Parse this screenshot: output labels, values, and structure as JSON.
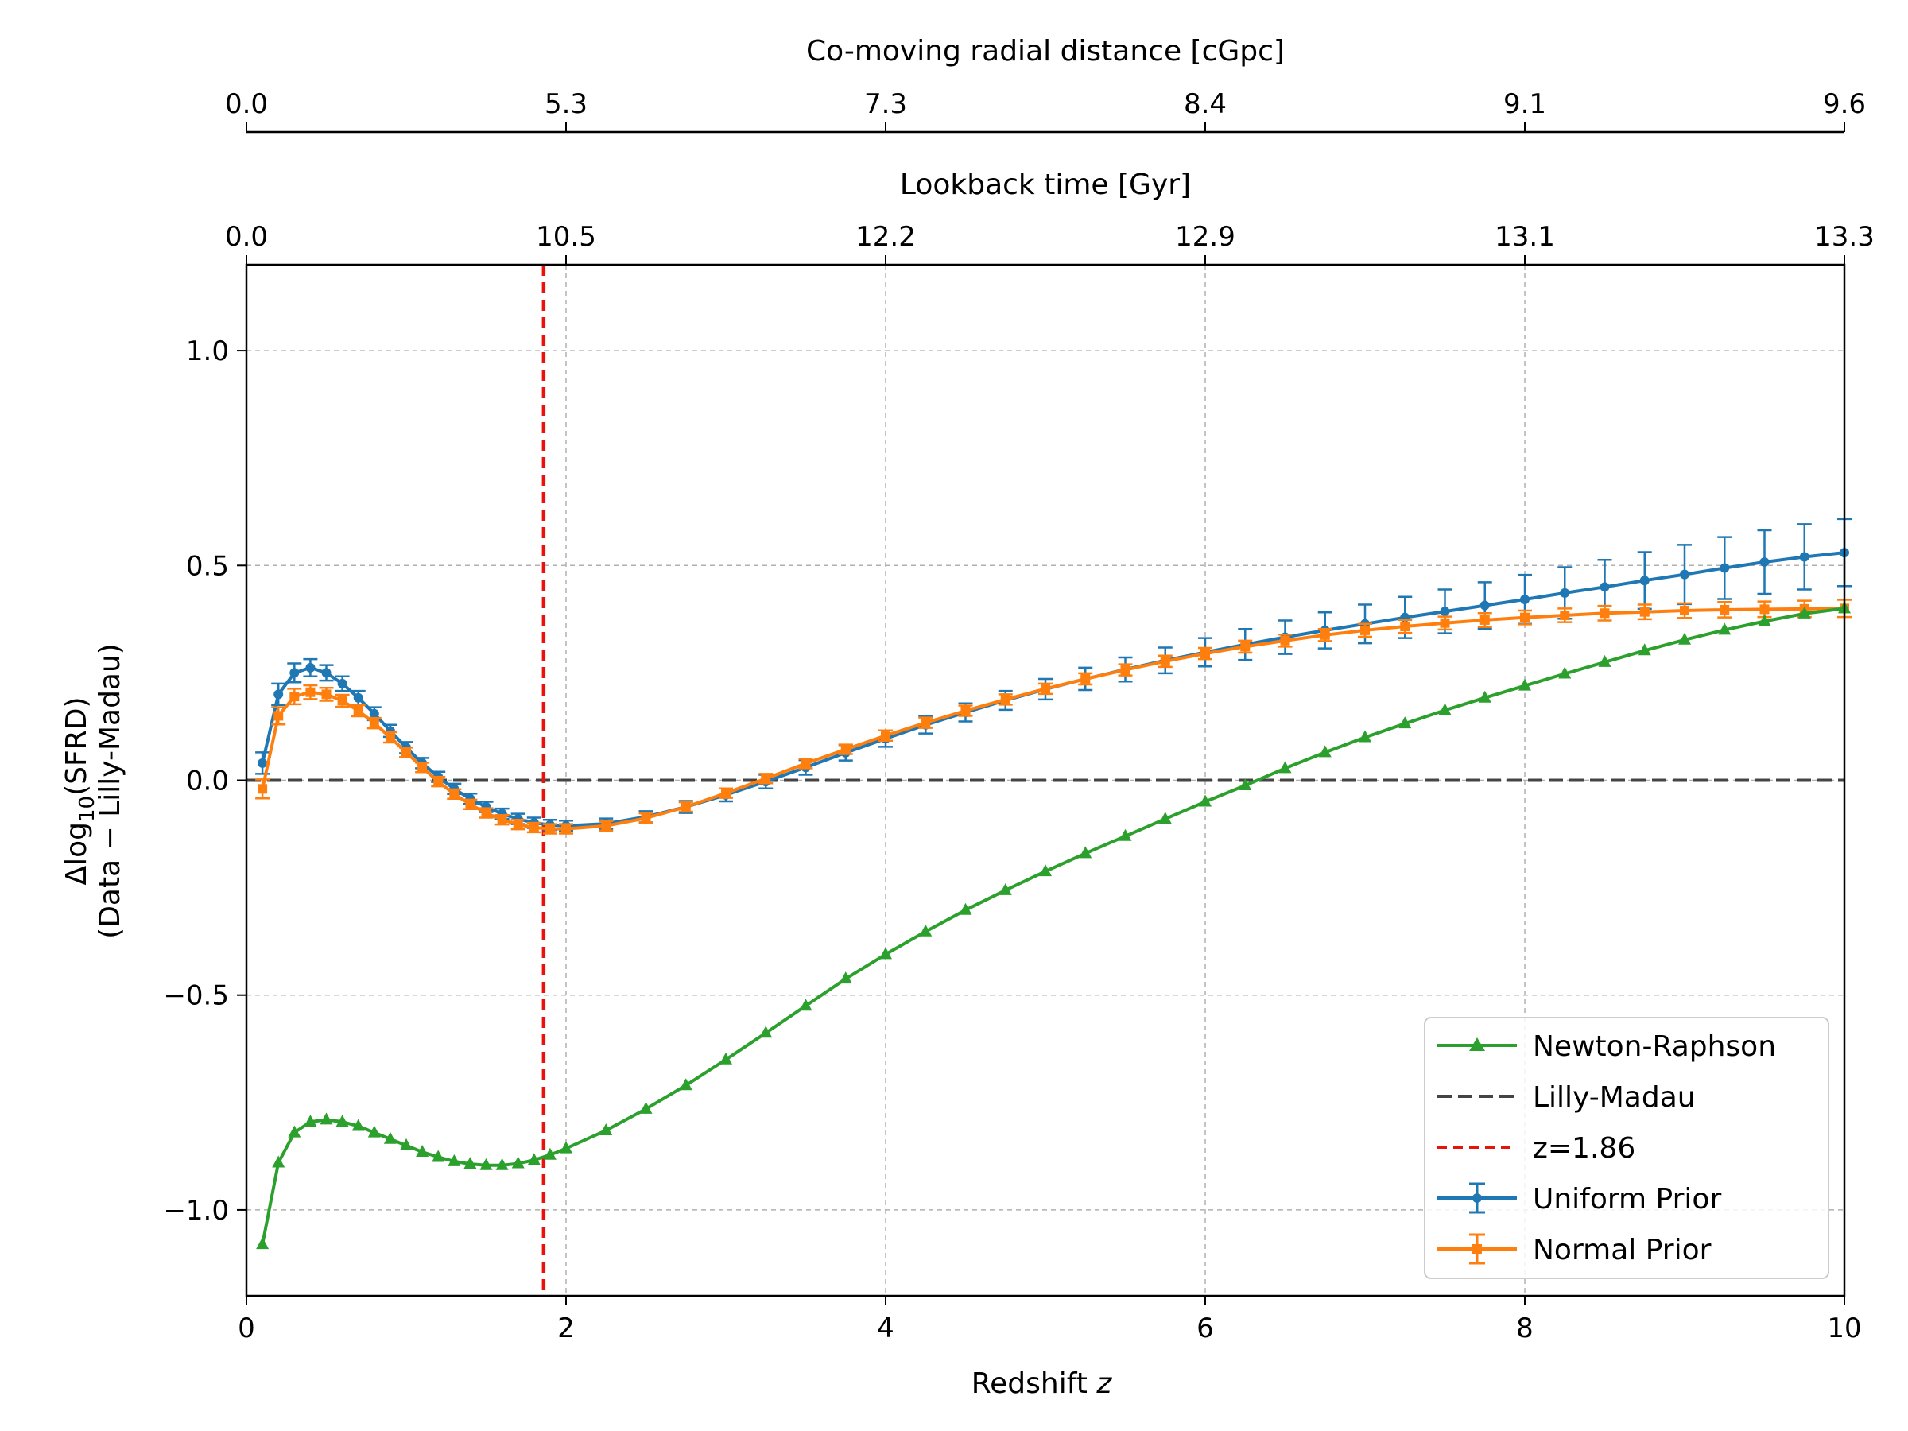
{
  "chart_data": {
    "type": "line",
    "xlabel": "Redshift",
    "xlabel_var": "z",
    "ylabel_line1": "Δlog",
    "ylabel_sub": "10",
    "ylabel_line1_rest": "(SFRD)",
    "ylabel_line2": "(Data − Lilly-Madau)",
    "xlim": [
      0,
      10
    ],
    "ylim": [
      -1.2,
      1.2
    ],
    "grid": true,
    "legend_position": "lower-right",
    "x_ticks": [
      0,
      2,
      4,
      6,
      8,
      10
    ],
    "x_tick_labels": [
      "0",
      "2",
      "4",
      "6",
      "8",
      "10"
    ],
    "y_ticks": [
      -1.0,
      -0.5,
      0.0,
      0.5,
      1.0
    ],
    "y_tick_labels": [
      "−1.0",
      "−0.5",
      "0.0",
      "0.5",
      "1.0"
    ],
    "top_axis_1": {
      "label": "Lookback time [Gyr]",
      "tick_positions_z": [
        0,
        2,
        4,
        6,
        8,
        10
      ],
      "tick_labels": [
        "0.0",
        "10.5",
        "12.2",
        "12.9",
        "13.1",
        "13.3"
      ]
    },
    "top_axis_2": {
      "label": "Co-moving radial distance [cGpc]",
      "tick_positions_z": [
        0,
        2,
        4,
        6,
        8,
        10
      ],
      "tick_labels": [
        "0.0",
        "5.3",
        "7.3",
        "8.4",
        "9.1",
        "9.6"
      ]
    },
    "vline": {
      "x": 1.86,
      "color": "#e8120c",
      "label": "z=1.86"
    },
    "hline": {
      "y": 0.0,
      "color": "#444444",
      "label": "Lilly-Madau"
    },
    "series": [
      {
        "name": "Newton-Raphson",
        "color": "#2ca02c",
        "marker": "triangle",
        "points": [
          [
            0.1,
            -1.08
          ],
          [
            0.2,
            -0.89
          ],
          [
            0.3,
            -0.82
          ],
          [
            0.4,
            -0.795
          ],
          [
            0.5,
            -0.79
          ],
          [
            0.6,
            -0.795
          ],
          [
            0.7,
            -0.805
          ],
          [
            0.8,
            -0.82
          ],
          [
            0.9,
            -0.835
          ],
          [
            1.0,
            -0.85
          ],
          [
            1.1,
            -0.865
          ],
          [
            1.2,
            -0.877
          ],
          [
            1.3,
            -0.887
          ],
          [
            1.4,
            -0.893
          ],
          [
            1.5,
            -0.896
          ],
          [
            1.6,
            -0.896
          ],
          [
            1.7,
            -0.892
          ],
          [
            1.8,
            -0.884
          ],
          [
            1.9,
            -0.872
          ],
          [
            2.0,
            -0.857
          ],
          [
            2.25,
            -0.815
          ],
          [
            2.5,
            -0.765
          ],
          [
            2.75,
            -0.71
          ],
          [
            3.0,
            -0.65
          ],
          [
            3.25,
            -0.588
          ],
          [
            3.5,
            -0.525
          ],
          [
            3.75,
            -0.462
          ],
          [
            4.0,
            -0.405
          ],
          [
            4.25,
            -0.352
          ],
          [
            4.5,
            -0.302
          ],
          [
            4.75,
            -0.256
          ],
          [
            5.0,
            -0.212
          ],
          [
            5.25,
            -0.17
          ],
          [
            5.5,
            -0.13
          ],
          [
            5.75,
            -0.09
          ],
          [
            6.0,
            -0.05
          ],
          [
            6.25,
            -0.012
          ],
          [
            6.5,
            0.028
          ],
          [
            6.75,
            0.065
          ],
          [
            7.0,
            0.1
          ],
          [
            7.25,
            0.132
          ],
          [
            7.5,
            0.163
          ],
          [
            7.75,
            0.192
          ],
          [
            8.0,
            0.22
          ],
          [
            8.25,
            0.248
          ],
          [
            8.5,
            0.275
          ],
          [
            8.75,
            0.302
          ],
          [
            9.0,
            0.327
          ],
          [
            9.25,
            0.35
          ],
          [
            9.5,
            0.37
          ],
          [
            9.75,
            0.388
          ],
          [
            10.0,
            0.4
          ]
        ]
      },
      {
        "name": "Uniform Prior",
        "color": "#1f77b4",
        "marker": "circle",
        "points": [
          [
            0.1,
            0.04
          ],
          [
            0.2,
            0.2
          ],
          [
            0.3,
            0.25
          ],
          [
            0.4,
            0.262
          ],
          [
            0.5,
            0.25
          ],
          [
            0.6,
            0.225
          ],
          [
            0.7,
            0.192
          ],
          [
            0.8,
            0.155
          ],
          [
            0.9,
            0.115
          ],
          [
            1.0,
            0.076
          ],
          [
            1.1,
            0.04
          ],
          [
            1.2,
            0.008
          ],
          [
            1.3,
            -0.02
          ],
          [
            1.4,
            -0.043
          ],
          [
            1.5,
            -0.062
          ],
          [
            1.6,
            -0.078
          ],
          [
            1.7,
            -0.09
          ],
          [
            1.8,
            -0.099
          ],
          [
            1.9,
            -0.104
          ],
          [
            2.0,
            -0.106
          ],
          [
            2.25,
            -0.101
          ],
          [
            2.5,
            -0.085
          ],
          [
            2.75,
            -0.062
          ],
          [
            3.0,
            -0.034
          ],
          [
            3.25,
            -0.003
          ],
          [
            3.5,
            0.03
          ],
          [
            3.75,
            0.064
          ],
          [
            4.0,
            0.097
          ],
          [
            4.25,
            0.129
          ],
          [
            4.5,
            0.158
          ],
          [
            4.75,
            0.186
          ],
          [
            5.0,
            0.212
          ],
          [
            5.25,
            0.236
          ],
          [
            5.5,
            0.258
          ],
          [
            5.75,
            0.279
          ],
          [
            6.0,
            0.298
          ],
          [
            6.25,
            0.316
          ],
          [
            6.5,
            0.333
          ],
          [
            6.75,
            0.349
          ],
          [
            7.0,
            0.364
          ],
          [
            7.25,
            0.379
          ],
          [
            7.5,
            0.393
          ],
          [
            7.75,
            0.407
          ],
          [
            8.0,
            0.421
          ],
          [
            8.25,
            0.436
          ],
          [
            8.5,
            0.45
          ],
          [
            8.75,
            0.465
          ],
          [
            9.0,
            0.479
          ],
          [
            9.25,
            0.494
          ],
          [
            9.5,
            0.508
          ],
          [
            9.75,
            0.52
          ],
          [
            10.0,
            0.53
          ]
        ],
        "err_low": [
          0.025,
          0.025,
          0.022,
          0.02,
          0.018,
          0.017,
          0.016,
          0.015,
          0.014,
          0.013,
          0.012,
          0.012,
          0.012,
          0.012,
          0.012,
          0.012,
          0.012,
          0.012,
          0.012,
          0.012,
          0.012,
          0.013,
          0.014,
          0.015,
          0.016,
          0.017,
          0.018,
          0.019,
          0.02,
          0.021,
          0.022,
          0.024,
          0.026,
          0.028,
          0.03,
          0.033,
          0.036,
          0.039,
          0.042,
          0.045,
          0.048,
          0.051,
          0.054,
          0.057,
          0.06,
          0.063,
          0.066,
          0.069,
          0.072,
          0.074,
          0.076,
          0.078
        ],
        "err_high": [
          0.025,
          0.025,
          0.022,
          0.02,
          0.018,
          0.017,
          0.016,
          0.015,
          0.014,
          0.013,
          0.012,
          0.012,
          0.012,
          0.012,
          0.012,
          0.012,
          0.012,
          0.012,
          0.012,
          0.012,
          0.012,
          0.013,
          0.014,
          0.015,
          0.016,
          0.017,
          0.018,
          0.019,
          0.02,
          0.021,
          0.022,
          0.024,
          0.026,
          0.028,
          0.03,
          0.033,
          0.036,
          0.039,
          0.042,
          0.045,
          0.048,
          0.051,
          0.054,
          0.057,
          0.06,
          0.063,
          0.066,
          0.069,
          0.072,
          0.074,
          0.076,
          0.078
        ]
      },
      {
        "name": "Normal Prior",
        "color": "#ff7f0e",
        "marker": "square",
        "points": [
          [
            0.1,
            -0.02
          ],
          [
            0.2,
            0.15
          ],
          [
            0.3,
            0.195
          ],
          [
            0.4,
            0.205
          ],
          [
            0.5,
            0.2
          ],
          [
            0.6,
            0.185
          ],
          [
            0.7,
            0.162
          ],
          [
            0.8,
            0.133
          ],
          [
            0.9,
            0.1
          ],
          [
            1.0,
            0.065
          ],
          [
            1.1,
            0.03
          ],
          [
            1.2,
            -0.003
          ],
          [
            1.3,
            -0.032
          ],
          [
            1.4,
            -0.056
          ],
          [
            1.5,
            -0.076
          ],
          [
            1.6,
            -0.092
          ],
          [
            1.7,
            -0.103
          ],
          [
            1.8,
            -0.11
          ],
          [
            1.9,
            -0.113
          ],
          [
            2.0,
            -0.113
          ],
          [
            2.25,
            -0.106
          ],
          [
            2.5,
            -0.088
          ],
          [
            2.75,
            -0.062
          ],
          [
            3.0,
            -0.03
          ],
          [
            3.25,
            0.004
          ],
          [
            3.5,
            0.039
          ],
          [
            3.75,
            0.072
          ],
          [
            4.0,
            0.104
          ],
          [
            4.25,
            0.134
          ],
          [
            4.5,
            0.162
          ],
          [
            4.75,
            0.188
          ],
          [
            5.0,
            0.213
          ],
          [
            5.25,
            0.236
          ],
          [
            5.5,
            0.257
          ],
          [
            5.75,
            0.277
          ],
          [
            6.0,
            0.295
          ],
          [
            6.25,
            0.311
          ],
          [
            6.5,
            0.325
          ],
          [
            6.75,
            0.338
          ],
          [
            7.0,
            0.349
          ],
          [
            7.25,
            0.358
          ],
          [
            7.5,
            0.366
          ],
          [
            7.75,
            0.373
          ],
          [
            8.0,
            0.379
          ],
          [
            8.25,
            0.384
          ],
          [
            8.5,
            0.389
          ],
          [
            8.75,
            0.392
          ],
          [
            9.0,
            0.395
          ],
          [
            9.25,
            0.397
          ],
          [
            9.5,
            0.398
          ],
          [
            9.75,
            0.399
          ],
          [
            10.0,
            0.4
          ]
        ],
        "err_low": [
          0.022,
          0.02,
          0.018,
          0.016,
          0.015,
          0.014,
          0.013,
          0.012,
          0.012,
          0.011,
          0.011,
          0.011,
          0.011,
          0.011,
          0.011,
          0.011,
          0.011,
          0.011,
          0.011,
          0.011,
          0.011,
          0.011,
          0.011,
          0.011,
          0.011,
          0.011,
          0.011,
          0.012,
          0.012,
          0.012,
          0.012,
          0.012,
          0.013,
          0.013,
          0.013,
          0.013,
          0.014,
          0.014,
          0.014,
          0.015,
          0.015,
          0.015,
          0.016,
          0.016,
          0.016,
          0.017,
          0.017,
          0.017,
          0.018,
          0.018,
          0.019,
          0.02
        ],
        "err_high": [
          0.022,
          0.02,
          0.018,
          0.016,
          0.015,
          0.014,
          0.013,
          0.012,
          0.012,
          0.011,
          0.011,
          0.011,
          0.011,
          0.011,
          0.011,
          0.011,
          0.011,
          0.011,
          0.011,
          0.011,
          0.011,
          0.011,
          0.011,
          0.011,
          0.011,
          0.011,
          0.011,
          0.012,
          0.012,
          0.012,
          0.012,
          0.012,
          0.013,
          0.013,
          0.013,
          0.013,
          0.014,
          0.014,
          0.014,
          0.015,
          0.015,
          0.015,
          0.016,
          0.016,
          0.016,
          0.017,
          0.017,
          0.017,
          0.018,
          0.018,
          0.019,
          0.02
        ]
      }
    ],
    "legend": [
      "Newton-Raphson",
      "Lilly-Madau",
      "z=1.86",
      "Uniform Prior",
      "Normal Prior"
    ]
  }
}
